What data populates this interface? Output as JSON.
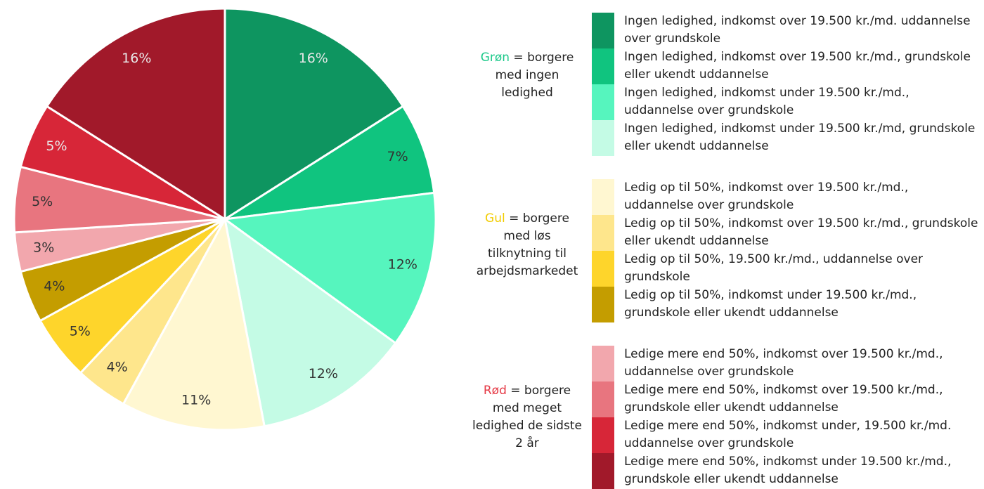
{
  "chart_data": {
    "type": "pie",
    "categories": [
      "Ingen ledighed, indkomst over 19.500 kr./md. uddannelse over grundskole",
      "Ingen ledighed, indkomst over 19.500 kr./md., grundskole eller ukendt uddannelse",
      "Ingen ledighed, indkomst under 19.500 kr./md., uddannelse over grundskole",
      "Ingen ledighed, indkomst under 19.500 kr./md, grundskole eller ukendt uddannelse",
      "Ledig op til 50%, indkomst over 19.500 kr./md., uddannelse over grundskole",
      "Ledig op til 50%, indkomst over 19.500 kr./md., grundskole eller ukendt uddannelse",
      "Ledig op til 50%, 19.500 kr./md., uddannelse over grundskole",
      "Ledig op til 50%, indkomst under 19.500 kr./md., grundskole eller ukendt uddannelse",
      "Ledige mere end 50%, indkomst over 19.500 kr./md., uddannelse over grundskole",
      "Ledige mere end 50%, indkomst over 19.500 kr./md., grundskole eller ukendt uddannelse",
      "Ledige mere end 50%, indkomst under, 19.500 kr./md. uddannelse over grundskole",
      "Ledige mere end 50%, indkomst under 19.500 kr./md., grundskole eller ukendt uddannelse"
    ],
    "values": [
      16,
      7,
      12,
      12,
      11,
      4,
      5,
      4,
      3,
      5,
      5,
      16
    ],
    "value_labels": [
      "16%",
      "7%",
      "12%",
      "12%",
      "11%",
      "4%",
      "5%",
      "4%",
      "3%",
      "5%",
      "5%",
      "16%"
    ],
    "colors": [
      "#0e9560",
      "#10c47f",
      "#56f5be",
      "#c4fbe5",
      "#fff7d1",
      "#fee68c",
      "#fed52b",
      "#c49d00",
      "#f2a7ad",
      "#e8757f",
      "#d72638",
      "#a1192a"
    ],
    "groups": [
      {
        "name": "Grøn",
        "color": "#1dc98a",
        "text": "= borgere med ingen ledighed"
      },
      {
        "name": "Gul",
        "color": "#f2cc00",
        "text": "= borgere med løs tilknytning til arbejdsmarkedet"
      },
      {
        "name": "Rød",
        "color": "#e53945",
        "text": "= borgere med meget ledighed de sidste 2 år"
      }
    ]
  }
}
